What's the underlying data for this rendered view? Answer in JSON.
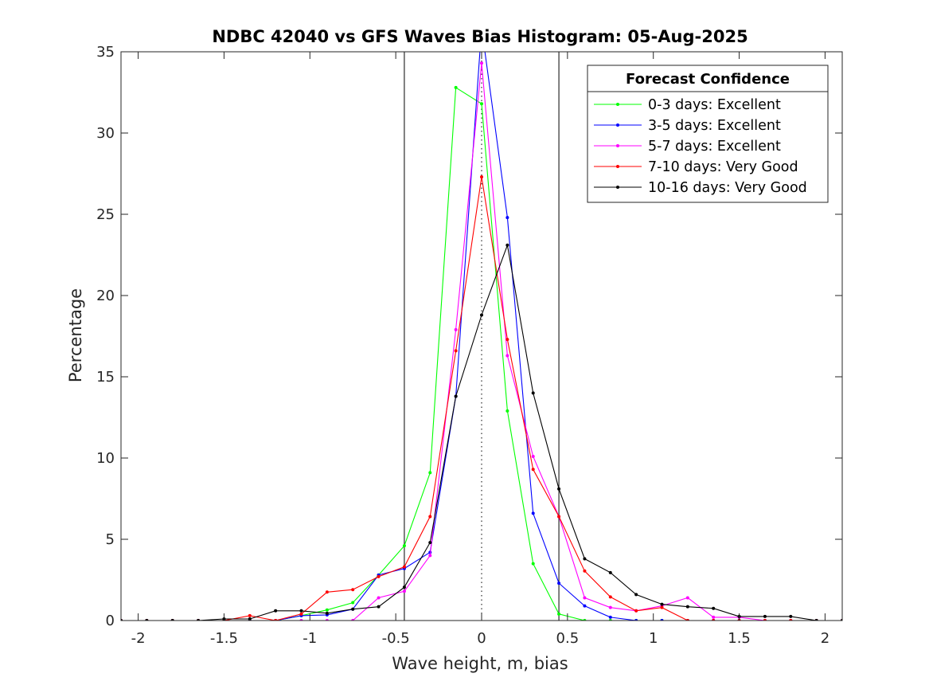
{
  "chart_data": {
    "type": "line",
    "title": "NDBC 42040 vs GFS Waves Bias Histogram: 05-Aug-2025",
    "xlabel": "Wave height, m, bias",
    "ylabel": "Percentage",
    "xlim": [
      -2.1,
      2.1
    ],
    "ylim": [
      0,
      35
    ],
    "xticks": [
      -2,
      -1.5,
      -1,
      -0.5,
      0,
      0.5,
      1,
      1.5,
      2
    ],
    "xtick_labels": [
      "-2",
      "-1.5",
      "-1",
      "-0.5",
      "0",
      "0.5",
      "1",
      "1.5",
      "2"
    ],
    "yticks": [
      0,
      5,
      10,
      15,
      20,
      25,
      30,
      35
    ],
    "ytick_labels": [
      "0",
      "5",
      "10",
      "15",
      "20",
      "25",
      "30",
      "35"
    ],
    "vertical_lines": [
      -0.45,
      0.45
    ],
    "dotted_line": 0,
    "grid": false,
    "legend_title": "Forecast Confidence",
    "legend_position": "top-right",
    "x": [
      -2.1,
      -1.95,
      -1.8,
      -1.65,
      -1.5,
      -1.35,
      -1.2,
      -1.05,
      -0.9,
      -0.75,
      -0.6,
      -0.45,
      -0.3,
      -0.15,
      0,
      0.15,
      0.3,
      0.45,
      0.6,
      0.75,
      0.9,
      1.05,
      1.2,
      1.35,
      1.5,
      1.65,
      1.8,
      1.95,
      2.1
    ],
    "series": [
      {
        "name": "0-3 days: Excellent",
        "color": "#00ff00",
        "values": [
          0,
          0,
          0,
          0,
          0,
          0,
          0,
          0.3,
          0.65,
          1.1,
          2.8,
          4.6,
          9.1,
          32.8,
          31.8,
          12.9,
          3.5,
          0.4,
          0,
          0,
          0,
          0,
          0,
          0,
          0,
          0,
          0,
          0,
          0
        ]
      },
      {
        "name": "3-5 days: Excellent",
        "color": "#0000ff",
        "values": [
          0,
          0,
          0,
          0,
          0,
          0,
          0,
          0.3,
          0.35,
          0.7,
          2.8,
          3.2,
          4.2,
          13.8,
          36.5,
          24.8,
          6.6,
          2.3,
          0.9,
          0.2,
          0,
          0,
          0,
          0,
          0,
          0,
          0,
          0,
          0
        ]
      },
      {
        "name": "5-7 days: Excellent",
        "color": "#ff00ff",
        "values": [
          0,
          0,
          0,
          0,
          0,
          0,
          0,
          0,
          0,
          0,
          1.4,
          1.8,
          4.0,
          17.9,
          34.3,
          16.3,
          10.1,
          6.4,
          1.4,
          0.8,
          0.6,
          0.9,
          1.4,
          0.2,
          0.2,
          0,
          0,
          0,
          0
        ]
      },
      {
        "name": "7-10 days: Very Good",
        "color": "#ff0000",
        "values": [
          0,
          0,
          0,
          0,
          0,
          0.3,
          0,
          0.4,
          1.75,
          1.9,
          2.7,
          3.3,
          6.4,
          16.6,
          27.3,
          17.3,
          9.3,
          6.4,
          3.05,
          1.45,
          0.6,
          0.8,
          0,
          0,
          0,
          0,
          0,
          0,
          0
        ]
      },
      {
        "name": "10-16 days: Very Good",
        "color": "#000000",
        "values": [
          0,
          0,
          0,
          0,
          0.1,
          0.1,
          0.6,
          0.6,
          0.45,
          0.7,
          0.85,
          2.05,
          4.8,
          13.8,
          18.8,
          23.1,
          14.0,
          8.1,
          3.8,
          2.95,
          1.6,
          1.0,
          0.85,
          0.75,
          0.25,
          0.25,
          0.25,
          0,
          0
        ]
      }
    ]
  }
}
